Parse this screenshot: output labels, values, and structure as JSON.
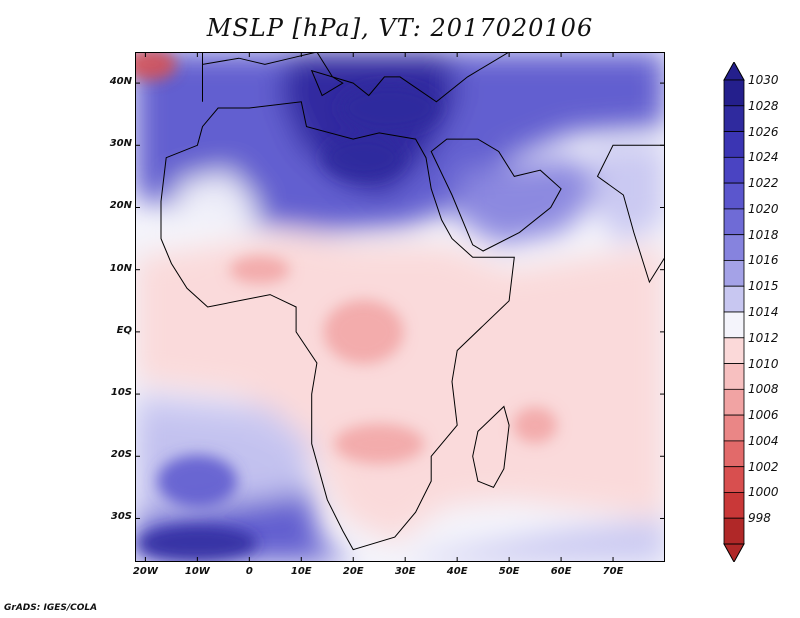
{
  "title": "MSLP [hPa], VT: 2017020106",
  "credit": "GrADS: IGES/COLA",
  "lat_labels": [
    "40N",
    "30N",
    "20N",
    "10N",
    "EQ",
    "10S",
    "20S",
    "30S"
  ],
  "lon_labels": [
    "20W",
    "10W",
    "0",
    "10E",
    "20E",
    "30E",
    "40E",
    "50E",
    "60E",
    "70E"
  ],
  "colorbar": {
    "levels": [
      "1030",
      "1028",
      "1026",
      "1024",
      "1022",
      "1020",
      "1018",
      "1016",
      "1015",
      "1014",
      "1012",
      "1010",
      "1008",
      "1006",
      "1004",
      "1002",
      "1000",
      "998"
    ],
    "colors": [
      "#241f8c",
      "#2f2a9e",
      "#3b35b3",
      "#4a44c2",
      "#5b56cd",
      "#6f6bd6",
      "#8683de",
      "#a4a2e7",
      "#c8c7f1",
      "#f4f4fb",
      "#fbd9d9",
      "#f7c0c0",
      "#f1a3a3",
      "#ea8686",
      "#e26a6a",
      "#d84f4f",
      "#c93838",
      "#b02828"
    ]
  },
  "map": {
    "extent": {
      "lon_min": -22,
      "lon_max": 80,
      "lat_min": -37,
      "lat_max": 45
    },
    "colors": {
      "deep_high": "#2f2a9e",
      "high": "#5b56cd",
      "mid_high": "#8683de",
      "low_high": "#c8c7f1",
      "neutral": "#f4f4fb",
      "low": "#fbd9d9",
      "mid_low": "#f1a3a3",
      "deep_low": "#d84f4f",
      "coast": "#000000"
    }
  }
}
